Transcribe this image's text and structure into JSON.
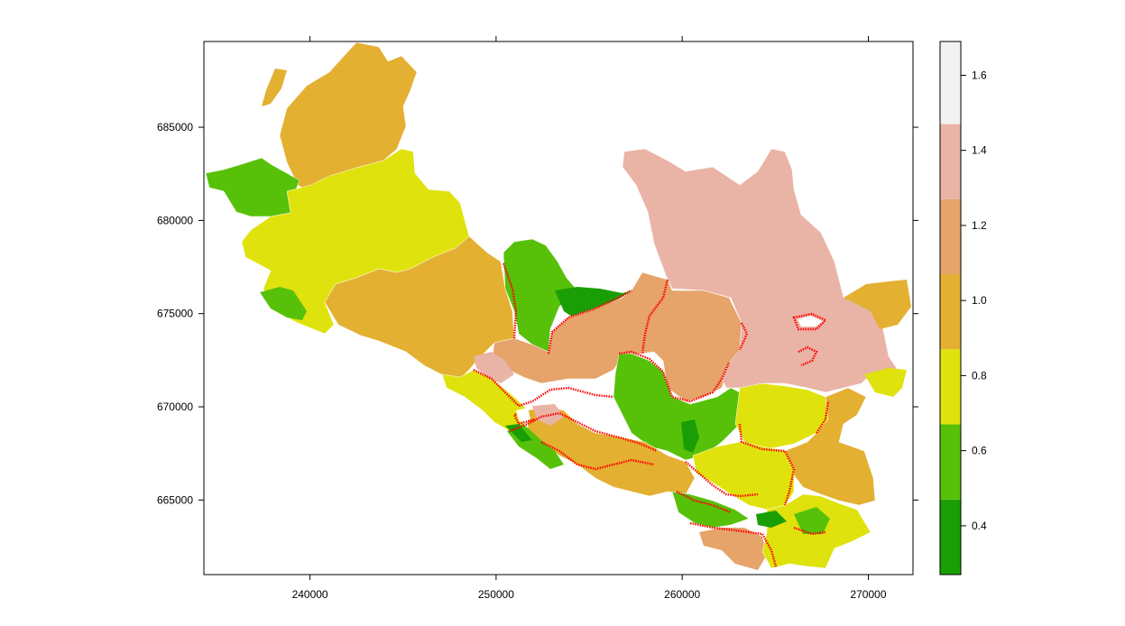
{
  "x_axis": {
    "ticks": [
      {
        "value": 240000,
        "label": "240000"
      },
      {
        "value": 250000,
        "label": "250000"
      },
      {
        "value": 260000,
        "label": "260000"
      },
      {
        "value": 270000,
        "label": "270000"
      }
    ],
    "range": [
      234300,
      272400
    ]
  },
  "y_axis": {
    "ticks": [
      {
        "value": 665000,
        "label": "665000"
      },
      {
        "value": 670000,
        "label": "670000"
      },
      {
        "value": 675000,
        "label": "675000"
      },
      {
        "value": 680000,
        "label": "680000"
      },
      {
        "value": 685000,
        "label": "685000"
      }
    ],
    "range": [
      661000,
      689600
    ]
  },
  "legend": {
    "range": [
      0.27,
      1.69
    ],
    "bins": [
      {
        "from": 0.27,
        "to": 0.47,
        "color": "#1a9e05"
      },
      {
        "from": 0.47,
        "to": 0.67,
        "color": "#57c10a"
      },
      {
        "from": 0.67,
        "to": 0.87,
        "color": "#e0e20d"
      },
      {
        "from": 0.87,
        "to": 1.07,
        "color": "#e3b031"
      },
      {
        "from": 1.07,
        "to": 1.27,
        "color": "#e6a36a"
      },
      {
        "from": 1.27,
        "to": 1.47,
        "color": "#e9b4a6"
      },
      {
        "from": 1.47,
        "to": 1.69,
        "color": "#f2f2f2"
      }
    ],
    "ticks": [
      {
        "value": 0.4,
        "label": "0.4"
      },
      {
        "value": 0.6,
        "label": "0.6"
      },
      {
        "value": 0.8,
        "label": "0.8"
      },
      {
        "value": 1.0,
        "label": "1.0"
      },
      {
        "value": 1.2,
        "label": "1.2"
      },
      {
        "value": 1.4,
        "label": "1.4"
      },
      {
        "value": 1.6,
        "label": "1.6"
      }
    ]
  },
  "colors": {
    "highlight_border": "#ff0000",
    "region_border": "#ffffff",
    "frame": "#000000"
  }
}
